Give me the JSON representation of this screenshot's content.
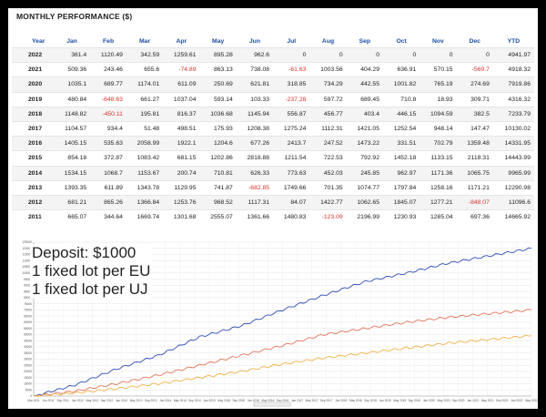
{
  "table": {
    "title": "MONTHLY PERFORMANCE ($)",
    "columns": [
      "Year",
      "Jan",
      "Feb",
      "Mar",
      "Apr",
      "May",
      "Jun",
      "Jul",
      "Aug",
      "Sep",
      "Oct",
      "Nov",
      "Dec",
      "YTD"
    ],
    "rows": [
      [
        "2022",
        "361.4",
        "1120.49",
        "342.59",
        "1259.61",
        "895.28",
        "962.6",
        "0",
        "0",
        "0",
        "0",
        "0",
        "0",
        "4941.97"
      ],
      [
        "2021",
        "509.36",
        "243.46",
        "655.6",
        "-74.89",
        "863.13",
        "738.08",
        "-61.63",
        "1003.56",
        "404.29",
        "636.91",
        "570.15",
        "-569.7",
        "4918.32"
      ],
      [
        "2020",
        "1035.1",
        "689.77",
        "1174.01",
        "611.09",
        "250.69",
        "621.81",
        "318.85",
        "734.29",
        "442.55",
        "1001.82",
        "765.19",
        "274.69",
        "7919.86"
      ],
      [
        "2019",
        "480.84",
        "-648.63",
        "661.27",
        "1037.04",
        "593.14",
        "103.33",
        "-237.28",
        "597.72",
        "689.45",
        "710.8",
        "18.93",
        "309.71",
        "4316.32"
      ],
      [
        "2018",
        "1148.82",
        "-450.11",
        "195.81",
        "816.37",
        "1036.68",
        "1145.94",
        "556.87",
        "456.77",
        "403.4",
        "446.15",
        "1094.59",
        "382.5",
        "7233.79"
      ],
      [
        "2017",
        "1104.57",
        "934.4",
        "51.48",
        "498.51",
        "175.93",
        "1208.38",
        "1275.24",
        "1112.31",
        "1421.05",
        "1252.54",
        "948.14",
        "147.47",
        "10130.02"
      ],
      [
        "2016",
        "1405.15",
        "535.63",
        "2058.99",
        "1922.1",
        "1204.6",
        "677.26",
        "2413.7",
        "247.52",
        "1473.22",
        "331.51",
        "702.79",
        "1359.48",
        "14331.95"
      ],
      [
        "2015",
        "854.18",
        "372.87",
        "1083.42",
        "681.15",
        "1202.86",
        "2818.88",
        "1211.54",
        "722.53",
        "792.92",
        "1452.18",
        "1133.15",
        "2118.31",
        "14443.99"
      ],
      [
        "2014",
        "1534.15",
        "1068.7",
        "1153.67",
        "200.74",
        "710.81",
        "626.33",
        "773.63",
        "452.03",
        "245.85",
        "962.97",
        "1171.36",
        "1065.75",
        "9965.99"
      ],
      [
        "2013",
        "1393.35",
        "611.89",
        "1343.78",
        "1129.95",
        "741.87",
        "-682.85",
        "1749.66",
        "701.35",
        "1074.77",
        "1797.84",
        "1258.16",
        "1171.21",
        "12290.98"
      ],
      [
        "2012",
        "681.21",
        "865.26",
        "1366.84",
        "1253.76",
        "968.52",
        "1117.31",
        "84.07",
        "1422.77",
        "1062.65",
        "1845.07",
        "1277.21",
        "-848.07",
        "11096.6"
      ],
      [
        "2011",
        "665.07",
        "344.64",
        "1669.74",
        "1301.68",
        "2555.07",
        "1361.66",
        "1480.83",
        "-123.09",
        "2196.99",
        "1230.93",
        "1285.04",
        "697.36",
        "14665.92"
      ]
    ]
  },
  "overlay": {
    "line1": "Deposit: $1000",
    "line2": "1 fixed lot per EU",
    "line3": "1 fixed lot per UJ"
  },
  "chart_data": {
    "type": "line",
    "x": [
      "Mar 2011",
      "Jan 2012",
      "Jan 2013",
      "Jan 2014",
      "Jan 2015",
      "Jan 2016",
      "Jan 2017",
      "Jan 2018",
      "Jan 2019",
      "Jan 2020",
      "Jan 2021",
      "Jan 2022",
      "Jun 2022"
    ],
    "series": [
      {
        "color": "#2f4db8",
        "values": [
          0,
          9000,
          22000,
          33000,
          48000,
          57000,
          70000,
          82000,
          93000,
          100000,
          108000,
          114000,
          120000
        ]
      },
      {
        "color": "#e5735a",
        "values": [
          0,
          4000,
          10000,
          17000,
          25000,
          33000,
          41000,
          50000,
          55000,
          60000,
          64000,
          67000,
          70000
        ]
      },
      {
        "color": "#f1b24a",
        "values": [
          0,
          2500,
          6000,
          10000,
          15000,
          20000,
          26000,
          31000,
          35000,
          39000,
          43000,
          46000,
          49000
        ]
      }
    ],
    "ylim": [
      0,
      125000
    ],
    "yticks": [
      0,
      5000,
      10000,
      15000,
      20000,
      25000,
      30000,
      35000,
      40000,
      45000,
      50000,
      55000,
      60000,
      65000,
      70000,
      75000,
      80000,
      85000,
      90000,
      95000,
      100000,
      105000,
      110000,
      115000,
      120000,
      125000
    ],
    "xticks": [
      "Mar 2011",
      "Jun 2011",
      "Sep 2011",
      "Jan 2012",
      "May 2012",
      "Sep 2012",
      "Jan 2013",
      "May 2013",
      "Sep 2013",
      "Jan 2014",
      "May 2014",
      "Sep 2014",
      "Jan 2015",
      "May 2015",
      "Sep 2015",
      "Jan 2016",
      "May 2016",
      "Sep 2016",
      "Jan 2017",
      "May 2017",
      "Sep 2017",
      "Jan 2018",
      "May 2018",
      "Sep 2018",
      "Jan 2019",
      "May 2019",
      "Sep 2019",
      "Jan 2020",
      "May 2020",
      "Sep 2020",
      "Jan 2021",
      "May 2021",
      "Sep 2021",
      "Jan 2022",
      "May 2022"
    ],
    "grid": true
  }
}
